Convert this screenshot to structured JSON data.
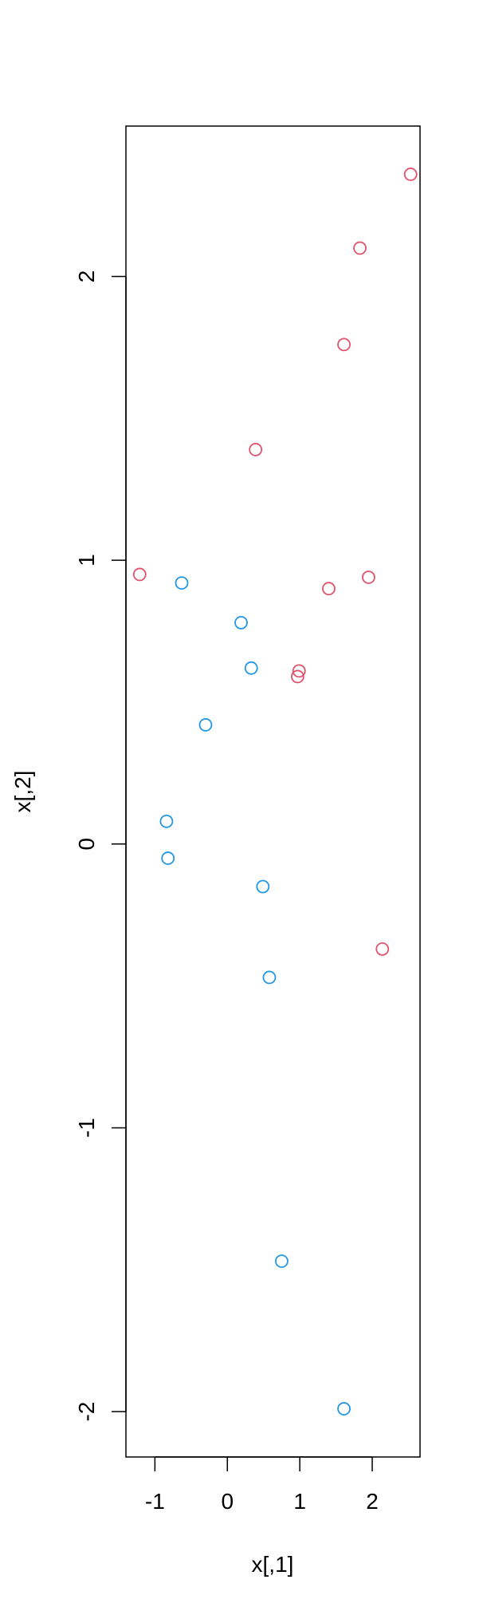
{
  "chart_data": {
    "type": "scatter",
    "title": "",
    "xlabel": "x[,1]",
    "ylabel": "x[,2]",
    "xlim": [
      -1.4,
      2.66
    ],
    "ylim": [
      -2.16,
      2.53
    ],
    "xticks": [
      -1,
      0,
      1,
      2
    ],
    "yticks": [
      -2,
      -1,
      0,
      1,
      2
    ],
    "xtick_labels": [
      "-1",
      "0",
      "1",
      "2"
    ],
    "ytick_labels": [
      "-2",
      "-1",
      "0",
      "1",
      "2"
    ],
    "grid": false,
    "legend": "none",
    "marker": "open-circle",
    "series": [
      {
        "color": "#DF536B",
        "points": [
          {
            "x": 2.53,
            "y": 2.36
          },
          {
            "x": 1.83,
            "y": 2.1
          },
          {
            "x": 1.61,
            "y": 1.76
          },
          {
            "x": 0.39,
            "y": 1.39
          },
          {
            "x": -1.21,
            "y": 0.95
          },
          {
            "x": 1.95,
            "y": 0.94
          },
          {
            "x": 1.4,
            "y": 0.9
          },
          {
            "x": 0.99,
            "y": 0.61
          },
          {
            "x": 0.97,
            "y": 0.59
          },
          {
            "x": 2.14,
            "y": -0.37
          }
        ]
      },
      {
        "color": "#2297E6",
        "points": [
          {
            "x": -0.63,
            "y": 0.92
          },
          {
            "x": 0.19,
            "y": 0.78
          },
          {
            "x": 0.33,
            "y": 0.62
          },
          {
            "x": -0.3,
            "y": 0.42
          },
          {
            "x": -0.84,
            "y": 0.08
          },
          {
            "x": -0.82,
            "y": -0.05
          },
          {
            "x": 0.49,
            "y": -0.15
          },
          {
            "x": 0.58,
            "y": -0.47
          },
          {
            "x": 0.75,
            "y": -1.47
          },
          {
            "x": 1.61,
            "y": -1.99
          }
        ]
      }
    ]
  }
}
